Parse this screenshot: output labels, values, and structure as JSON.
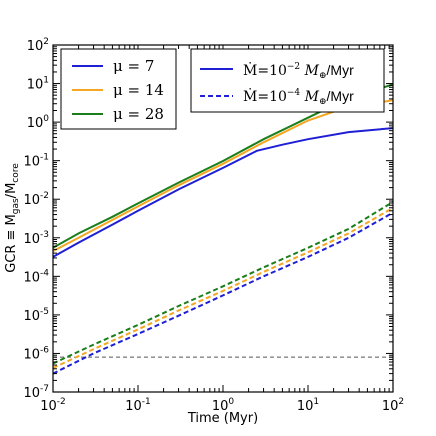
{
  "chart_data": {
    "type": "line",
    "xlabel": "Time (Myr)",
    "ylabel_main": "GCR ≡ M",
    "ylabel_sub1": "gas",
    "ylabel_mid": "/M",
    "ylabel_sub2": "core",
    "xscale": "log",
    "yscale": "log",
    "xlim": [
      0.01,
      100
    ],
    "ylim": [
      1e-07,
      100
    ],
    "x_ticks": [
      {
        "base": "10",
        "exp": "-2",
        "value": 0.01
      },
      {
        "base": "10",
        "exp": "-1",
        "value": 0.1
      },
      {
        "base": "10",
        "exp": "0",
        "value": 1
      },
      {
        "base": "10",
        "exp": "1",
        "value": 10
      },
      {
        "base": "10",
        "exp": "2",
        "value": 100
      }
    ],
    "y_ticks": [
      {
        "base": "10",
        "exp": "-7",
        "value": 1e-07
      },
      {
        "base": "10",
        "exp": "-6",
        "value": 1e-06
      },
      {
        "base": "10",
        "exp": "-5",
        "value": 1e-05
      },
      {
        "base": "10",
        "exp": "-4",
        "value": 0.0001
      },
      {
        "base": "10",
        "exp": "-3",
        "value": 0.001
      },
      {
        "base": "10",
        "exp": "-2",
        "value": 0.01
      },
      {
        "base": "10",
        "exp": "-1",
        "value": 0.1
      },
      {
        "base": "10",
        "exp": "0",
        "value": 1
      },
      {
        "base": "10",
        "exp": "1",
        "value": 10
      },
      {
        "base": "10",
        "exp": "2",
        "value": 100
      }
    ],
    "legend_mu": [
      {
        "label": "μ = 7",
        "color": "#1f1fd6"
      },
      {
        "label": "μ = 14",
        "color": "#f5a623"
      },
      {
        "label": "μ = 28",
        "color": "#1a7f1a"
      }
    ],
    "legend_mdot": [
      {
        "prefix": "Ṁ=10",
        "exp": "−2",
        "suffix_unit": "M",
        "sub": "⊕",
        "tail": "/Myr",
        "dash": "solid"
      },
      {
        "prefix": "Ṁ=10",
        "exp": "−4",
        "suffix_unit": "M",
        "sub": "⊕",
        "tail": "/Myr",
        "dash": "dashed"
      }
    ],
    "series": [
      {
        "mu": 7,
        "mdot": "1e-2",
        "color": "#1f1fd6",
        "dash": "solid",
        "points": [
          [
            0.01,
            0.00032
          ],
          [
            0.02,
            0.00075
          ],
          [
            0.05,
            0.0022
          ],
          [
            0.1,
            0.005
          ],
          [
            0.3,
            0.018
          ],
          [
            1,
            0.065
          ],
          [
            2.5,
            0.18
          ],
          [
            5,
            0.26
          ],
          [
            10,
            0.36
          ],
          [
            30,
            0.55
          ],
          [
            100,
            0.7
          ]
        ]
      },
      {
        "mu": 14,
        "mdot": "1e-2",
        "color": "#f5a623",
        "dash": "solid",
        "points": [
          [
            0.01,
            0.00045
          ],
          [
            0.02,
            0.001
          ],
          [
            0.05,
            0.0029
          ],
          [
            0.1,
            0.0065
          ],
          [
            0.3,
            0.023
          ],
          [
            1,
            0.083
          ],
          [
            3,
            0.3
          ],
          [
            10,
            1.1
          ],
          [
            25,
            2.2
          ],
          [
            40,
            2.7
          ],
          [
            100,
            3.7
          ]
        ]
      },
      {
        "mu": 28,
        "mdot": "1e-2",
        "color": "#1a7f1a",
        "dash": "solid",
        "points": [
          [
            0.01,
            0.00055
          ],
          [
            0.02,
            0.0013
          ],
          [
            0.05,
            0.0035
          ],
          [
            0.1,
            0.0078
          ],
          [
            0.3,
            0.027
          ],
          [
            1,
            0.098
          ],
          [
            3,
            0.36
          ],
          [
            10,
            1.3
          ],
          [
            30,
            4.2
          ],
          [
            100,
            9.5
          ]
        ]
      },
      {
        "mu": 7,
        "mdot": "1e-4",
        "color": "#1f1fd6",
        "dash": "dashed",
        "points": [
          [
            0.01,
            3e-07
          ],
          [
            0.03,
            1e-06
          ],
          [
            0.1,
            3.2e-06
          ],
          [
            0.3,
            9.5e-06
          ],
          [
            1,
            3.2e-05
          ],
          [
            3,
            0.0001
          ],
          [
            10,
            0.00032
          ],
          [
            30,
            0.001
          ],
          [
            100,
            0.0045
          ]
        ]
      },
      {
        "mu": 14,
        "mdot": "1e-4",
        "color": "#f5a623",
        "dash": "dashed",
        "points": [
          [
            0.01,
            4.2e-07
          ],
          [
            0.03,
            1.3e-06
          ],
          [
            0.1,
            4.2e-06
          ],
          [
            0.3,
            1.3e-05
          ],
          [
            1,
            4.2e-05
          ],
          [
            3,
            0.00013
          ],
          [
            10,
            0.00042
          ],
          [
            30,
            0.0013
          ],
          [
            100,
            0.006
          ]
        ]
      },
      {
        "mu": 28,
        "mdot": "1e-4",
        "color": "#1a7f1a",
        "dash": "dashed",
        "points": [
          [
            0.01,
            5.5e-07
          ],
          [
            0.03,
            1.7e-06
          ],
          [
            0.1,
            5.5e-06
          ],
          [
            0.3,
            1.7e-05
          ],
          [
            1,
            5.5e-05
          ],
          [
            3,
            0.00017
          ],
          [
            10,
            0.00055
          ],
          [
            30,
            0.0017
          ],
          [
            100,
            0.0085
          ]
        ]
      }
    ],
    "hline": {
      "y": 8e-07,
      "color": "#555555",
      "dash": "dashed"
    }
  }
}
